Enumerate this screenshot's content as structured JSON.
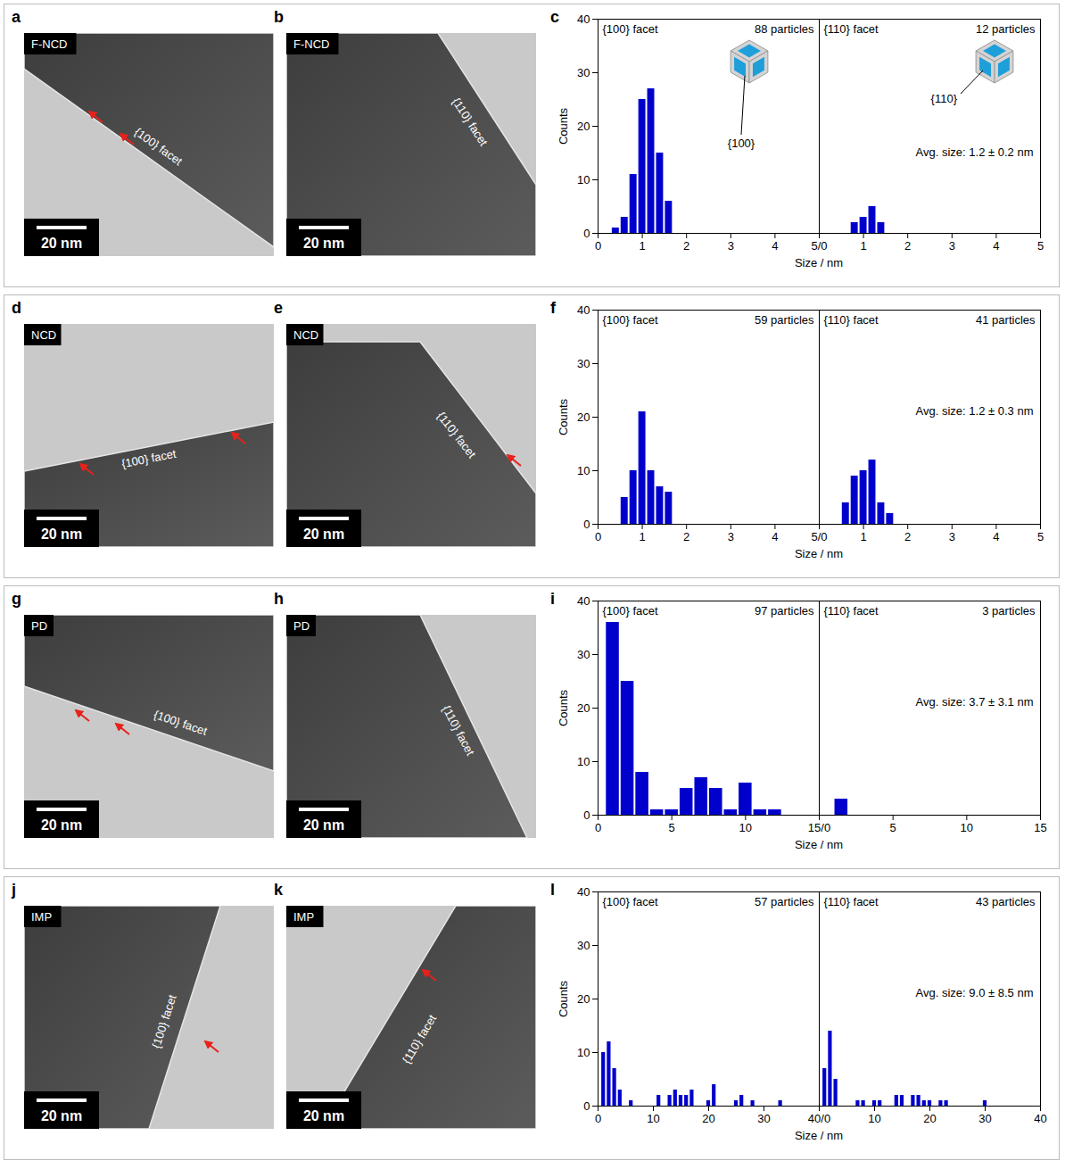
{
  "chart_data": [
    {
      "type": "histogram",
      "letter": "c",
      "xlabel": "Size / nm",
      "ylabel": "Counts",
      "ylim": [
        0,
        40
      ],
      "yticks": [
        0,
        10,
        20,
        30,
        40
      ],
      "color": "#0000cc",
      "annotation": "Avg. size: 1.2 ± 0.2 nm",
      "panels": [
        {
          "title": "{100} facet",
          "annotation": "88 particles",
          "inset_label": "{100}",
          "xlim": [
            0,
            5
          ],
          "xticks": [
            0,
            1,
            2,
            3,
            4,
            {
              "value": 5,
              "label": "5/0"
            }
          ],
          "bins": [
            0.3,
            0.5,
            0.7,
            0.9,
            1.1,
            1.3,
            1.5,
            1.7
          ],
          "values": [
            1,
            3,
            11,
            25,
            27,
            15,
            6
          ]
        },
        {
          "title": "{110} facet",
          "annotation": "12 particles",
          "inset_label": "{110}",
          "xlim": [
            0,
            5
          ],
          "xticks": [
            1,
            2,
            3,
            4,
            5
          ],
          "bins": [
            0.7,
            0.9,
            1.1,
            1.3,
            1.5
          ],
          "values": [
            2,
            3,
            5,
            2
          ]
        }
      ]
    },
    {
      "type": "histogram",
      "letter": "f",
      "xlabel": "Size / nm",
      "ylabel": "Counts",
      "ylim": [
        0,
        40
      ],
      "yticks": [
        0,
        10,
        20,
        30,
        40
      ],
      "color": "#0000cc",
      "annotation": "Avg. size: 1.2 ± 0.3 nm",
      "panels": [
        {
          "title": "{100} facet",
          "annotation": "59 particles",
          "xlim": [
            0,
            5
          ],
          "xticks": [
            0,
            1,
            2,
            3,
            4,
            {
              "value": 5,
              "label": "5/0"
            }
          ],
          "bins": [
            0.5,
            0.7,
            0.9,
            1.1,
            1.3,
            1.5,
            1.7
          ],
          "values": [
            5,
            10,
            21,
            10,
            7,
            6
          ]
        },
        {
          "title": "{110} facet",
          "annotation": "41 particles",
          "xlim": [
            0,
            5
          ],
          "xticks": [
            1,
            2,
            3,
            4,
            5
          ],
          "bins": [
            0.5,
            0.7,
            0.9,
            1.1,
            1.3,
            1.5,
            1.7
          ],
          "values": [
            4,
            9,
            10,
            12,
            4,
            2
          ]
        }
      ]
    },
    {
      "type": "histogram",
      "letter": "i",
      "xlabel": "Size / nm",
      "ylabel": "Counts",
      "ylim": [
        0,
        40
      ],
      "yticks": [
        0,
        10,
        20,
        30,
        40
      ],
      "color": "#0000cc",
      "annotation": "Avg. size: 3.7 ± 3.1 nm",
      "panels": [
        {
          "title": "{100} facet",
          "annotation": "97 particles",
          "xlim": [
            0,
            15
          ],
          "xticks": [
            0,
            5,
            10,
            {
              "value": 15,
              "label": "15/0"
            }
          ],
          "bins": [
            0.5,
            1.5,
            2.5,
            3.5,
            4.5,
            5.5,
            6.5,
            7.5,
            8.5,
            9.5,
            10.5,
            11.5,
            12.5
          ],
          "values": [
            36,
            25,
            8,
            1,
            1,
            5,
            7,
            5,
            1,
            6,
            1,
            1
          ]
        },
        {
          "title": "{110} facet",
          "annotation": "3 particles",
          "xlim": [
            0,
            15
          ],
          "xticks": [
            5,
            10,
            15
          ],
          "bins": [
            1,
            2
          ],
          "values": [
            3
          ]
        }
      ]
    },
    {
      "type": "histogram",
      "letter": "l",
      "xlabel": "Size / nm",
      "ylabel": "Counts",
      "ylim": [
        0,
        40
      ],
      "yticks": [
        0,
        10,
        20,
        30,
        40
      ],
      "color": "#0000cc",
      "annotation": "Avg. size: 9.0 ± 8.5 nm",
      "panels": [
        {
          "title": "{100} facet",
          "annotation": "57 particles",
          "xlim": [
            0,
            40
          ],
          "xticks": [
            0,
            10,
            20,
            30,
            {
              "value": 40,
              "label": "40/0"
            }
          ],
          "bins": [
            0.5,
            1.5,
            2.5,
            3.5,
            4.5,
            5.5,
            6.5,
            7.5,
            8.5,
            9.5,
            10.5,
            11.5,
            12.5,
            13.5,
            14.5,
            15.5,
            16.5,
            17.5,
            18.5,
            19.5,
            20.5,
            21.5,
            22.5,
            23.5,
            24.5,
            25.5,
            26.5,
            27.5,
            28.5,
            29.5,
            30.5,
            31.5,
            32.5,
            33.5
          ],
          "values": [
            10,
            12,
            7,
            3,
            0,
            1,
            0,
            0,
            0,
            0,
            2,
            0,
            2,
            3,
            2,
            2,
            3,
            0,
            0,
            1,
            4,
            0,
            0,
            0,
            1,
            2,
            0,
            1,
            0,
            0,
            0,
            0,
            1
          ]
        },
        {
          "title": "{110} facet",
          "annotation": "43 particles",
          "xlim": [
            0,
            40
          ],
          "xticks": [
            10,
            20,
            30,
            40
          ],
          "bins": [
            0.5,
            1.5,
            2.5,
            3.5,
            4.5,
            5.5,
            6.5,
            7.5,
            8.5,
            9.5,
            10.5,
            11.5,
            12.5,
            13.5,
            14.5,
            15.5,
            16.5,
            17.5,
            18.5,
            19.5,
            20.5,
            21.5,
            22.5,
            23.5,
            24.5,
            25.5,
            26.5,
            27.5,
            28.5,
            29.5,
            30.5
          ],
          "values": [
            7,
            14,
            5,
            0,
            0,
            0,
            1,
            1,
            0,
            1,
            1,
            0,
            0,
            2,
            2,
            0,
            2,
            2,
            1,
            1,
            0,
            1,
            1,
            0,
            0,
            0,
            0,
            0,
            0,
            1
          ]
        }
      ]
    }
  ],
  "images": [
    {
      "letter": "a",
      "sample": "F-NCD",
      "facet": "{100} facet",
      "scale_bar": "20 nm"
    },
    {
      "letter": "b",
      "sample": "F-NCD",
      "facet": "{110} facet",
      "scale_bar": "20 nm"
    },
    {
      "letter": "d",
      "sample": "NCD",
      "facet": "{100} facet",
      "scale_bar": "20 nm"
    },
    {
      "letter": "e",
      "sample": "NCD",
      "facet": "{110} facet",
      "scale_bar": "20 nm"
    },
    {
      "letter": "g",
      "sample": "PD",
      "facet": "{100} facet",
      "scale_bar": "20 nm"
    },
    {
      "letter": "h",
      "sample": "PD",
      "facet": "{110} facet",
      "scale_bar": "20 nm"
    },
    {
      "letter": "j",
      "sample": "IMP",
      "facet": "{100} facet",
      "scale_bar": "20 nm"
    },
    {
      "letter": "k",
      "sample": "IMP",
      "facet": "{110} facet",
      "scale_bar": "20 nm"
    }
  ]
}
